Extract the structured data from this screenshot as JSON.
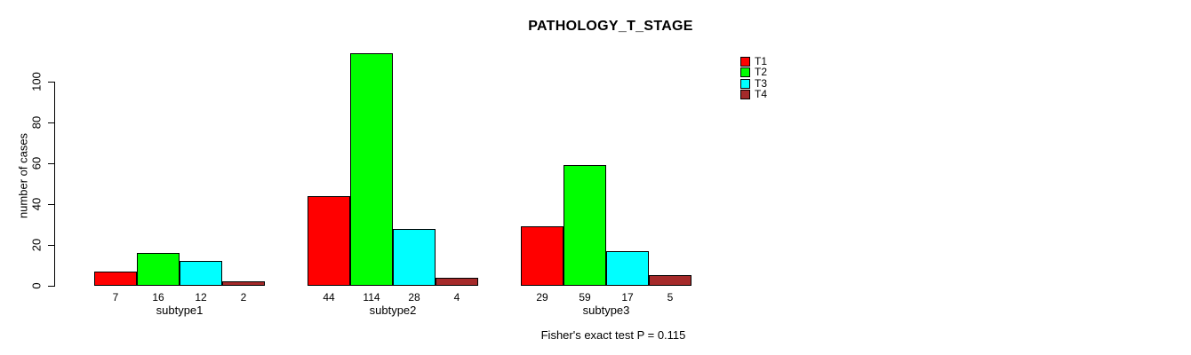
{
  "chart_data": {
    "type": "bar",
    "title": "PATHOLOGY_T_STAGE",
    "xlabel": "",
    "ylabel": "number of cases",
    "categories": [
      "subtype1",
      "subtype2",
      "subtype3"
    ],
    "series": [
      {
        "name": "T1",
        "color": "#ff0000",
        "values": [
          7,
          44,
          29
        ]
      },
      {
        "name": "T2",
        "color": "#00ff00",
        "values": [
          16,
          114,
          59
        ]
      },
      {
        "name": "T3",
        "color": "#00ffff",
        "values": [
          12,
          28,
          17
        ]
      },
      {
        "name": "T4",
        "color": "#a52a2a",
        "values": [
          2,
          4,
          5
        ]
      }
    ],
    "y_ticks": [
      0,
      20,
      40,
      60,
      80,
      100
    ],
    "ylim": [
      0,
      100
    ],
    "grid": false,
    "legend_position": "right",
    "legend_labels": [
      "T1",
      "T2",
      "T3",
      "T4"
    ],
    "bar_value_labels_shown": true,
    "bar_border_color": "#000000",
    "background": "#ffffff",
    "annotation": "Fisher's exact test P = 0.115"
  }
}
